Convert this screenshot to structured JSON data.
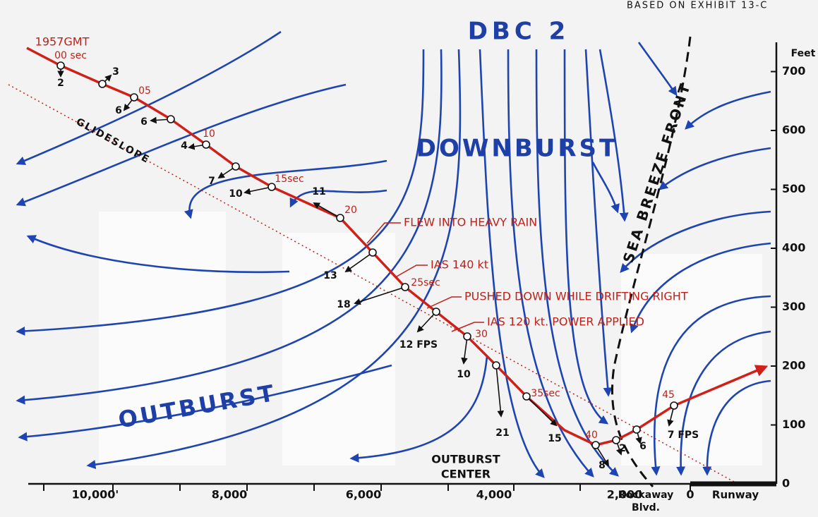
{
  "header": {
    "note": "BASED ON EXHIBIT 13-C"
  },
  "labels": {
    "dbc": "DBC 2",
    "downburst": "DOWNBURST",
    "outburst": "OUTBURST",
    "outburst_center": [
      "OUTBURST",
      "CENTER"
    ],
    "sea_breeze": "SEA BREEZE FRONT",
    "glideslope": "GLIDESLOPE",
    "start_time": "1957GMT"
  },
  "annotations": [
    "FLEW INTO HEAVY RAIN",
    "IAS 140 kt",
    "PUSHED DOWN WHILE DRIFTING RIGHT",
    "IAS 120 kt. POWER APPLIED"
  ],
  "x_axis": {
    "labels": [
      "10,000'",
      "8,000",
      "6,000",
      "4,000",
      "2,000",
      "0"
    ],
    "road": [
      "Rockaway",
      "Blvd."
    ],
    "runway": "Runway"
  },
  "y_axis": {
    "unit": "Feet",
    "labels": [
      "0",
      "100",
      "200",
      "300",
      "400",
      "500",
      "600",
      "700"
    ]
  },
  "time_labels": [
    "00 sec",
    "05",
    "10",
    "15sec",
    "20",
    "25sec",
    "30",
    "35sec",
    "40",
    "45"
  ],
  "wind_labels": [
    "2",
    "3",
    "6",
    "6",
    "4",
    "7",
    "10",
    "11",
    "13",
    "18",
    "12 FPS",
    "10",
    "21",
    "15",
    "8",
    "2",
    "6",
    "7 FPS"
  ]
}
